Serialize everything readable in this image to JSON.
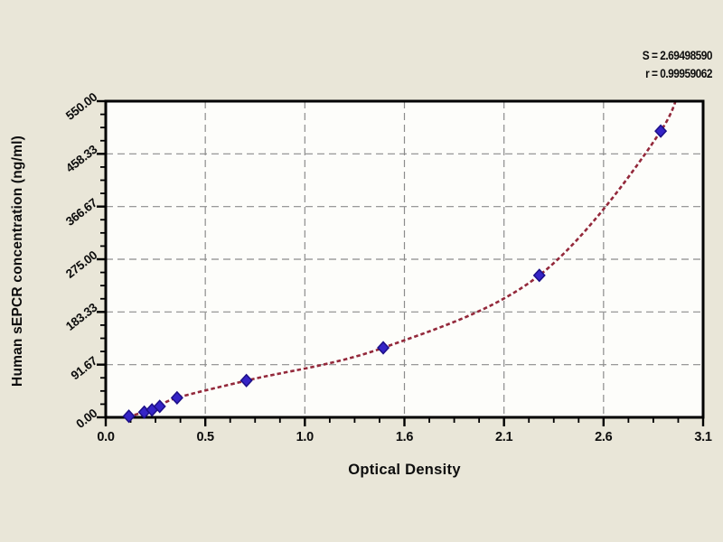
{
  "annotations": {
    "s_value": "S = 2.69498590",
    "r_value": "r = 0.99959062"
  },
  "chart_data": {
    "type": "scatter",
    "title": "",
    "xlabel": "Optical Density",
    "ylabel": "Human sEPCR concentration (ng/ml)",
    "xlim": [
      0,
      3.1
    ],
    "ylim": [
      0,
      550
    ],
    "grid": "dashed, at every major tick, both axes",
    "legend": "none",
    "x_tick_labels": [
      "0.0",
      "0.5",
      "1.0",
      "1.6",
      "2.1",
      "2.6",
      "3.1"
    ],
    "x_tick_values": [
      0,
      0.5167,
      1.0333,
      1.55,
      2.0667,
      2.5833,
      3.1
    ],
    "y_tick_labels": [
      "0.00",
      "91.67",
      "183.33",
      "275.00",
      "366.67",
      "458.33",
      "550.00"
    ],
    "y_tick_values": [
      0,
      91.67,
      183.33,
      275.0,
      366.67,
      458.33,
      550.0
    ],
    "minor_ticks_per_interval": 3,
    "series": [
      {
        "name": "standards",
        "marker": "diamond",
        "points": [
          {
            "x": 0.12,
            "y": 2
          },
          {
            "x": 0.2,
            "y": 9
          },
          {
            "x": 0.24,
            "y": 13
          },
          {
            "x": 0.28,
            "y": 19
          },
          {
            "x": 0.37,
            "y": 34
          },
          {
            "x": 0.73,
            "y": 64
          },
          {
            "x": 1.44,
            "y": 121
          },
          {
            "x": 2.25,
            "y": 247
          },
          {
            "x": 2.88,
            "y": 498
          }
        ]
      }
    ],
    "fit_curve": {
      "name": "regression-curve",
      "style": "short-dash",
      "anchors": [
        [
          0.115,
          1
        ],
        [
          0.2,
          9
        ],
        [
          0.24,
          13
        ],
        [
          0.28,
          19
        ],
        [
          0.37,
          34
        ],
        [
          0.73,
          64
        ],
        [
          1.44,
          121
        ],
        [
          2.25,
          247
        ],
        [
          2.88,
          498
        ],
        [
          2.99,
          620
        ]
      ]
    }
  },
  "colors": {
    "page_background": "#e9e6d8",
    "plot_background": "#fdfdfa",
    "axis": "#000000",
    "grid": "#8c8c8c",
    "curve": "#93283a",
    "marker_fill": "#3524c6",
    "marker_stroke": "#1c0f87",
    "text": "#0d0d0d"
  }
}
